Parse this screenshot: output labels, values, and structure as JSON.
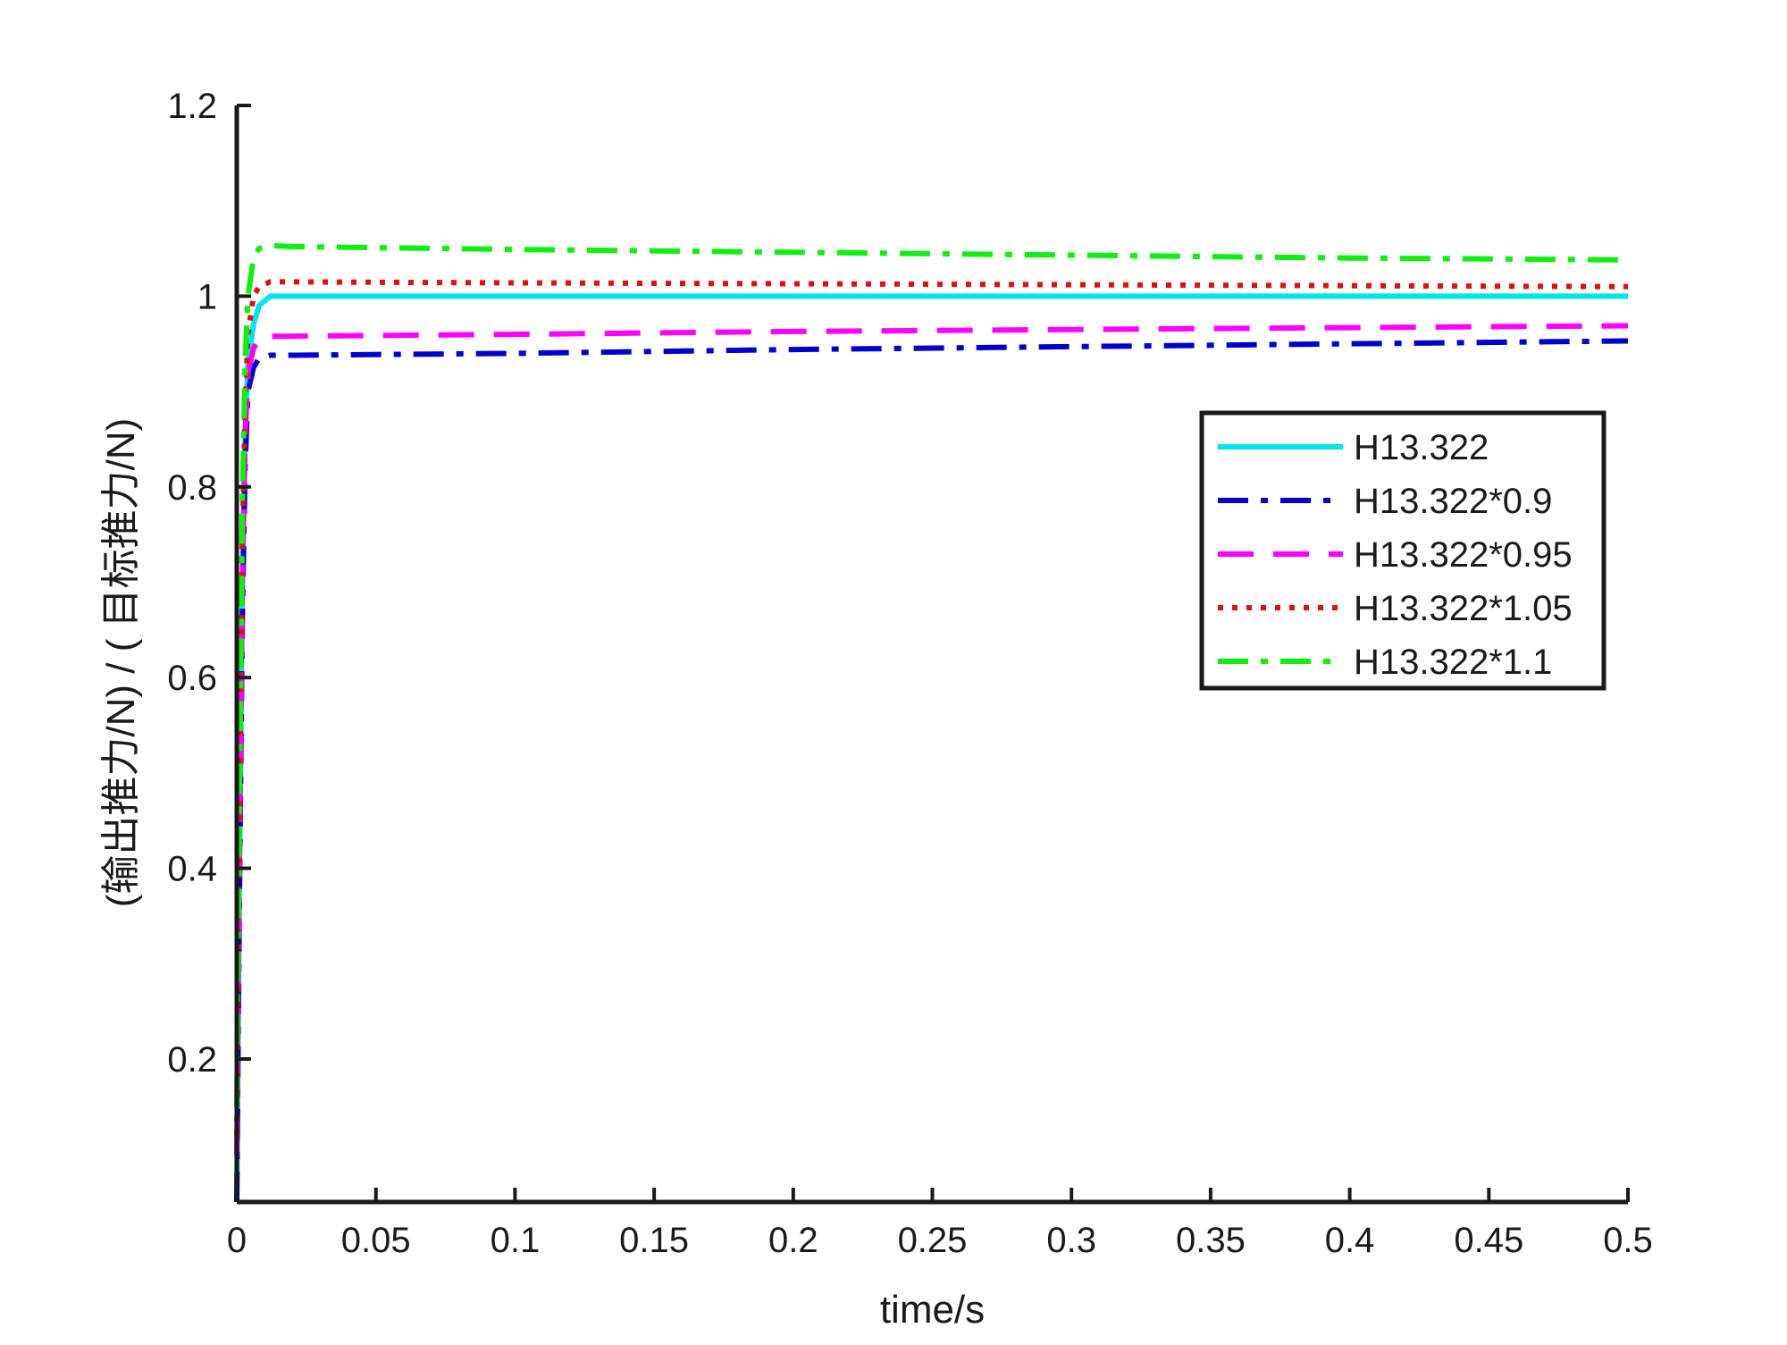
{
  "chart_data": {
    "type": "line",
    "title": "",
    "xlabel": "time/s",
    "ylabel": "(输出推力/N) / ( 目标推力/N)",
    "xlim": [
      0,
      0.5
    ],
    "ylim": [
      0.05,
      1.2
    ],
    "xticks": [
      0,
      0.05,
      0.1,
      0.15,
      0.2,
      0.25,
      0.3,
      0.35,
      0.4,
      0.45,
      0.5
    ],
    "xtick_labels": [
      "0",
      "0.05",
      "0.1",
      "0.15",
      "0.2",
      "0.25",
      "0.3",
      "0.35",
      "0.4",
      "0.45",
      "0.5"
    ],
    "yticks": [
      0.2,
      0.4,
      0.6,
      0.8,
      1,
      1.2
    ],
    "ytick_labels": [
      "0.2",
      "0.4",
      "0.6",
      "0.8",
      "1",
      "1.2"
    ],
    "grid": false,
    "legend_position": "top-right",
    "series": [
      {
        "name": "H13.322",
        "color": "#00e5ee",
        "dash": "solid",
        "x": [
          0,
          0.001,
          0.002,
          0.003,
          0.004,
          0.006,
          0.008,
          0.012,
          0.02,
          0.1,
          0.2,
          0.3,
          0.4,
          0.5
        ],
        "y": [
          0.05,
          0.4,
          0.7,
          0.85,
          0.93,
          0.97,
          0.99,
          1.0,
          1.0,
          1.0,
          1.0,
          1.0,
          1.0,
          1.0
        ]
      },
      {
        "name": "H13.322*0.9",
        "color": "#0000cc",
        "dash": "dashdot",
        "x": [
          0,
          0.001,
          0.002,
          0.003,
          0.004,
          0.006,
          0.008,
          0.012,
          0.02,
          0.1,
          0.2,
          0.3,
          0.4,
          0.5
        ],
        "y": [
          0.05,
          0.38,
          0.66,
          0.82,
          0.9,
          0.925,
          0.935,
          0.938,
          0.938,
          0.94,
          0.944,
          0.947,
          0.95,
          0.953
        ]
      },
      {
        "name": "H13.322*0.95",
        "color": "#ff00ff",
        "dash": "dashed",
        "x": [
          0,
          0.001,
          0.002,
          0.003,
          0.004,
          0.006,
          0.008,
          0.012,
          0.02,
          0.1,
          0.2,
          0.3,
          0.4,
          0.5
        ],
        "y": [
          0.1,
          0.42,
          0.7,
          0.85,
          0.92,
          0.945,
          0.955,
          0.958,
          0.958,
          0.96,
          0.963,
          0.965,
          0.967,
          0.969
        ]
      },
      {
        "name": "H13.322*1.05",
        "color": "#dd1111",
        "dash": "dotted",
        "x": [
          0,
          0.001,
          0.002,
          0.003,
          0.004,
          0.006,
          0.008,
          0.012,
          0.02,
          0.1,
          0.2,
          0.3,
          0.4,
          0.5
        ],
        "y": [
          0.12,
          0.45,
          0.74,
          0.88,
          0.96,
          1.0,
          1.01,
          1.015,
          1.015,
          1.014,
          1.013,
          1.012,
          1.011,
          1.01
        ]
      },
      {
        "name": "H13.322*1.1",
        "color": "#11ee11",
        "dash": "dashdot",
        "x": [
          0,
          0.001,
          0.002,
          0.003,
          0.004,
          0.006,
          0.008,
          0.012,
          0.02,
          0.1,
          0.2,
          0.3,
          0.4,
          0.5
        ],
        "y": [
          0.15,
          0.48,
          0.78,
          0.93,
          1.0,
          1.04,
          1.05,
          1.053,
          1.052,
          1.049,
          1.046,
          1.043,
          1.04,
          1.038
        ]
      }
    ]
  }
}
